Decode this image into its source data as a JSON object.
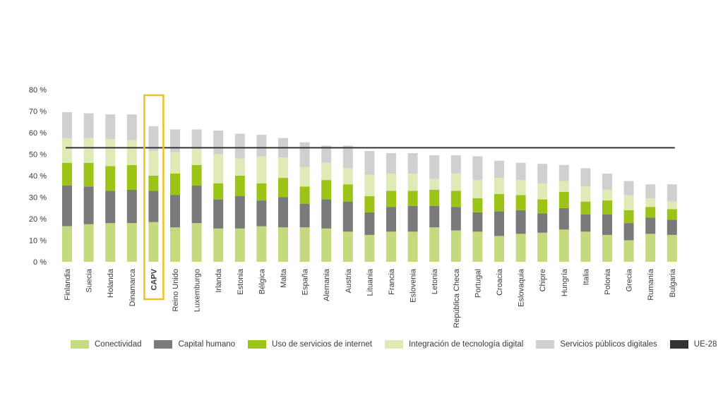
{
  "chart_data": {
    "type": "bar",
    "stacked": true,
    "title": "",
    "xlabel": "",
    "ylabel": "",
    "ylim": [
      0,
      80
    ],
    "yticks": [
      "0 %",
      "10 %",
      "20 %",
      "30 %",
      "40 %",
      "50 %",
      "60 %",
      "70 %",
      "80 %"
    ],
    "ytick_values": [
      0,
      10,
      20,
      30,
      40,
      50,
      60,
      70,
      80
    ],
    "categories": [
      "Finlandia",
      "Suecia",
      "Holanda",
      "Dinamarca",
      "CAPV",
      "Reino Unido",
      "Luxemburgo",
      "Irlanda",
      "Estonia",
      "Bélgica",
      "Malta",
      "España",
      "Alemania",
      "Austria",
      "Lituania",
      "Francia",
      "Eslovenia",
      "Letonia",
      "República Checa",
      "Portugal",
      "Croacia",
      "Eslovaquia",
      "Chipre",
      "Hungría",
      "Italia",
      "Polonia",
      "Grecia",
      "Rumanía",
      "Bulgaria"
    ],
    "highlight_category": "CAPV",
    "series": [
      {
        "name": "Conectividad",
        "color": "#c5d97f",
        "values": [
          16.5,
          17.5,
          18,
          18,
          18.5,
          16,
          18,
          15.5,
          15.5,
          16.5,
          16,
          16,
          15.5,
          14,
          12.5,
          14,
          14,
          16,
          14.5,
          14,
          12,
          13,
          13.5,
          15,
          14,
          12.5,
          10,
          13,
          12.5
        ]
      },
      {
        "name": "Capital humano",
        "color": "#7a7a7a",
        "values": [
          19,
          17.5,
          15,
          15.5,
          14.5,
          15,
          17.5,
          13.5,
          15,
          12,
          14,
          11,
          13.5,
          14,
          10.5,
          11.5,
          12,
          10,
          11,
          9,
          11.5,
          11,
          9,
          10,
          8,
          9.5,
          8,
          7.5,
          7
        ]
      },
      {
        "name": "Uso de servicios de internet",
        "color": "#9cc416",
        "values": [
          10.5,
          11,
          11.5,
          11.5,
          7,
          10,
          9.5,
          7.5,
          9.5,
          8,
          9,
          8,
          9,
          8,
          7.5,
          7.5,
          7,
          7.5,
          7.5,
          6.5,
          8,
          7,
          6.5,
          7.5,
          6,
          6.5,
          6,
          5,
          5
        ]
      },
      {
        "name": "Integración de tecnología digital",
        "color": "#dfeab7",
        "values": [
          11.5,
          11.5,
          12.5,
          11.5,
          11.5,
          10,
          7.5,
          13.5,
          8,
          12.5,
          9.5,
          9,
          8,
          7.5,
          10,
          8,
          8,
          5,
          8,
          8.5,
          7.5,
          7,
          7.5,
          5,
          7,
          5,
          7,
          4,
          3.5
        ]
      },
      {
        "name": "Servicios públicos digitales",
        "color": "#d0d0d0",
        "values": [
          12,
          11.5,
          11.5,
          12,
          11.5,
          10.5,
          9,
          11,
          11.5,
          10,
          9,
          11.5,
          8,
          10.5,
          11,
          9.5,
          9.5,
          11,
          8.5,
          11,
          8,
          8,
          9,
          7.5,
          8.5,
          7.5,
          6.5,
          6.5,
          8
        ]
      }
    ],
    "reference_line": {
      "name": "UE-28",
      "value": 53,
      "color": "#333333"
    },
    "legend": [
      {
        "label": "Conectividad",
        "color": "#c5d97f"
      },
      {
        "label": "Capital humano",
        "color": "#7a7a7a"
      },
      {
        "label": "Uso de servicios de internet",
        "color": "#9cc416"
      },
      {
        "label": "Integración de tecnología digital",
        "color": "#dfeab7"
      },
      {
        "label": "Servicios públicos digitales",
        "color": "#d0d0d0"
      },
      {
        "label": "UE-28",
        "color": "#333333"
      }
    ],
    "legend_position": "bottom",
    "highlight_color": "#f0c020"
  }
}
